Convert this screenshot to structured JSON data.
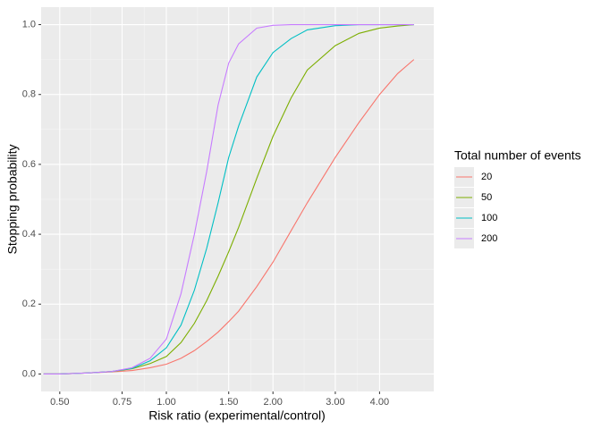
{
  "chart_data": {
    "type": "line",
    "xlabel": "Risk ratio (experimental/control)",
    "ylabel": "Stopping probability",
    "legend_title": "Total number of events",
    "legend": "right",
    "grid": true,
    "xscale": "log",
    "xlim": [
      0.443,
      5.69
    ],
    "ylim": [
      -0.05,
      1.05
    ],
    "xticks": [
      {
        "value": 0.5,
        "label": "0.50"
      },
      {
        "value": 0.75,
        "label": "0.75"
      },
      {
        "value": 1,
        "label": "1.00"
      },
      {
        "value": 1.5,
        "label": "1.50"
      },
      {
        "value": 2,
        "label": "2.00"
      },
      {
        "value": 3,
        "label": "3.00"
      },
      {
        "value": 4,
        "label": "4.00"
      }
    ],
    "yticks": [
      {
        "value": 0,
        "label": "0.0"
      },
      {
        "value": 0.2,
        "label": "0.2"
      },
      {
        "value": 0.4,
        "label": "0.4"
      },
      {
        "value": 0.6,
        "label": "0.6"
      },
      {
        "value": 0.8,
        "label": "0.8"
      },
      {
        "value": 1,
        "label": "1.0"
      }
    ],
    "x": [
      0.45,
      0.5,
      0.6,
      0.7,
      0.8,
      0.9,
      1.0,
      1.1,
      1.2,
      1.3,
      1.4,
      1.5,
      1.6,
      1.8,
      2.0,
      2.25,
      2.5,
      3.0,
      3.5,
      4.0,
      4.5,
      5.0
    ],
    "series": [
      {
        "name": "20",
        "color": "#F8766D",
        "values": [
          0,
          0,
          0.003,
          0.006,
          0.01,
          0.018,
          0.028,
          0.045,
          0.067,
          0.093,
          0.12,
          0.15,
          0.18,
          0.25,
          0.32,
          0.41,
          0.49,
          0.62,
          0.72,
          0.8,
          0.86,
          0.9
        ]
      },
      {
        "name": "50",
        "color": "#7CAE00",
        "values": [
          0,
          0,
          0.003,
          0.007,
          0.015,
          0.03,
          0.05,
          0.09,
          0.145,
          0.21,
          0.28,
          0.35,
          0.42,
          0.56,
          0.68,
          0.79,
          0.87,
          0.94,
          0.975,
          0.99,
          0.996,
          1
        ]
      },
      {
        "name": "100",
        "color": "#00BFC4",
        "values": [
          0,
          0,
          0.003,
          0.007,
          0.016,
          0.038,
          0.075,
          0.14,
          0.24,
          0.36,
          0.49,
          0.62,
          0.71,
          0.85,
          0.92,
          0.96,
          0.985,
          0.997,
          1,
          1,
          1,
          1
        ]
      },
      {
        "name": "200",
        "color": "#C77CFF",
        "values": [
          0,
          0,
          0.003,
          0.007,
          0.018,
          0.045,
          0.1,
          0.23,
          0.4,
          0.58,
          0.77,
          0.89,
          0.945,
          0.99,
          0.998,
          1,
          1,
          1,
          1,
          1,
          1,
          1
        ]
      }
    ]
  }
}
